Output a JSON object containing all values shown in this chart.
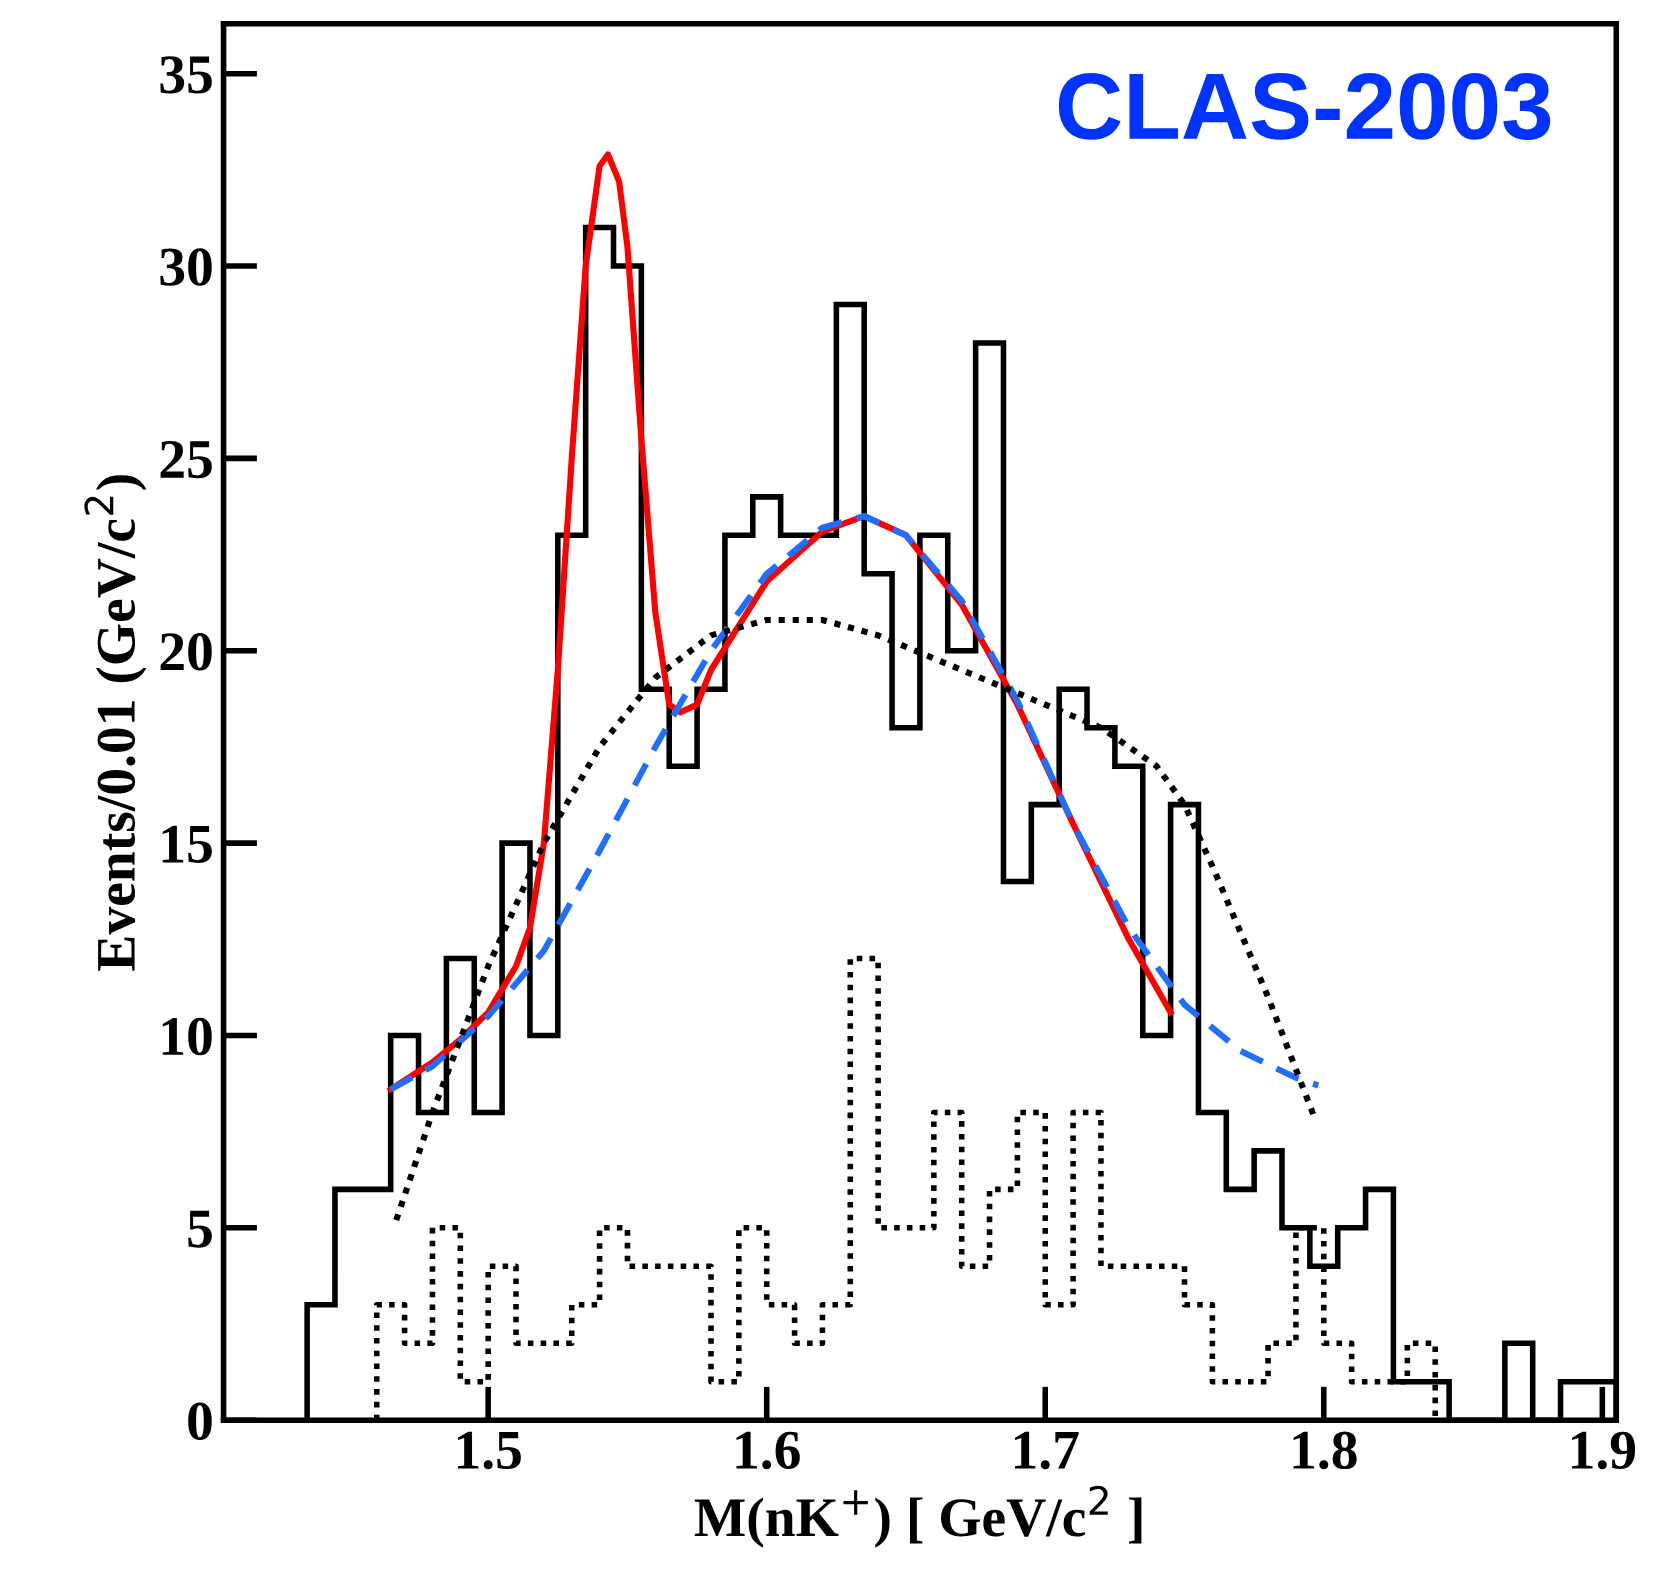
{
  "chart_data": {
    "type": "histogram",
    "xlabel": "M(nK$^{+}$) [ GeV/c$^{2}$ ]",
    "ylabel": "Events/0.01 (GeV/c$^{2}$)",
    "annotations": [
      "CLAS-2003"
    ],
    "bins": [
      1.435,
      1.445,
      1.455,
      1.465,
      1.475,
      1.485,
      1.495,
      1.505,
      1.515,
      1.525,
      1.535,
      1.545,
      1.555,
      1.565,
      1.575,
      1.585,
      1.595,
      1.605,
      1.615,
      1.625,
      1.635,
      1.645,
      1.655,
      1.665,
      1.675,
      1.685,
      1.695,
      1.705,
      1.715,
      1.725,
      1.735,
      1.745,
      1.755,
      1.765,
      1.775,
      1.785,
      1.795,
      1.805,
      1.815,
      1.825,
      1.835,
      1.845,
      1.855,
      1.865,
      1.875,
      1.885,
      1.895,
      1.905
    ],
    "series": [
      {
        "type": "histogram",
        "color": "#000000",
        "line_style": "solid",
        "values": [
          3,
          6,
          6,
          10,
          8,
          12,
          8,
          15,
          10,
          23,
          31,
          30,
          19,
          17,
          19,
          23,
          24,
          23,
          23,
          29,
          22,
          18,
          23,
          20,
          28,
          14,
          16,
          19,
          18,
          17,
          10,
          16,
          8,
          6,
          7,
          5,
          4,
          5,
          6,
          1,
          1,
          0,
          0,
          2,
          0,
          1,
          1
        ]
      },
      {
        "type": "step",
        "color": "#000000",
        "line_style": "dotted",
        "x": [
          1.46,
          1.46,
          1.47,
          1.48,
          1.49,
          1.5,
          1.51,
          1.52,
          1.53,
          1.54,
          1.55,
          1.56,
          1.57,
          1.58,
          1.59,
          1.6,
          1.61,
          1.62,
          1.63,
          1.64,
          1.65,
          1.66,
          1.67,
          1.68,
          1.69,
          1.7,
          1.71,
          1.72,
          1.73,
          1.74,
          1.75,
          1.76,
          1.77,
          1.78,
          1.79,
          1.8,
          1.81,
          1.82,
          1.83,
          1.84
        ],
        "values": [
          0,
          3,
          2,
          5,
          1,
          4,
          2,
          2,
          3,
          5,
          4,
          4,
          4,
          1,
          5,
          3,
          2,
          3,
          12,
          5,
          5,
          8,
          4,
          6,
          8,
          3,
          8,
          4,
          4,
          4,
          3,
          1,
          1,
          2,
          5,
          2,
          1,
          1,
          2,
          0
        ]
      },
      {
        "type": "line",
        "color": "#ff0000",
        "line_style": "solid",
        "x": [
          1.465,
          1.48,
          1.49,
          1.5,
          1.51,
          1.515,
          1.52,
          1.525,
          1.53,
          1.535,
          1.54,
          1.543,
          1.547,
          1.55,
          1.555,
          1.56,
          1.565,
          1.569,
          1.575,
          1.58,
          1.6,
          1.62,
          1.635,
          1.65,
          1.67,
          1.69,
          1.71,
          1.73,
          1.745
        ],
        "values": [
          8.6,
          9.3,
          9.9,
          10.6,
          11.8,
          12.8,
          15,
          19.5,
          25,
          30,
          32.6,
          32.9,
          32.2,
          30.5,
          25.5,
          21,
          18.6,
          18.4,
          18.6,
          19.5,
          21.8,
          23.1,
          23.5,
          23,
          21.2,
          18.6,
          15.5,
          12.5,
          10.6
        ]
      },
      {
        "type": "line",
        "color": "#1e6fff",
        "line_style": "dashed",
        "x": [
          1.465,
          1.48,
          1.5,
          1.52,
          1.54,
          1.56,
          1.58,
          1.6,
          1.62,
          1.635,
          1.65,
          1.67,
          1.69,
          1.71,
          1.73,
          1.75,
          1.77,
          1.79,
          1.798
        ],
        "values": [
          8.6,
          9.2,
          10.5,
          12.2,
          14.8,
          17.5,
          20,
          22,
          23.2,
          23.5,
          23,
          21.3,
          18.7,
          15.5,
          12.8,
          10.8,
          9.6,
          8.9,
          8.7
        ]
      },
      {
        "type": "line",
        "color": "#000000",
        "line_style": "dotted",
        "x": [
          1.467,
          1.48,
          1.5,
          1.52,
          1.54,
          1.56,
          1.58,
          1.6,
          1.62,
          1.64,
          1.66,
          1.68,
          1.7,
          1.72,
          1.74,
          1.75,
          1.76,
          1.78,
          1.797
        ],
        "values": [
          5.2,
          8,
          11.8,
          15,
          17.5,
          19.3,
          20.4,
          20.8,
          20.8,
          20.4,
          19.8,
          19.2,
          18.6,
          18,
          17,
          16,
          14.4,
          11,
          7.8
        ]
      }
    ],
    "xlim": [
      1.405,
      1.905
    ],
    "ylim": [
      0,
      36.3
    ],
    "xticks": [
      1.5,
      1.6,
      1.7,
      1.8,
      1.9
    ],
    "yticks": [
      0,
      5,
      10,
      15,
      20,
      25,
      30,
      35
    ],
    "grid": false,
    "legend": false
  }
}
